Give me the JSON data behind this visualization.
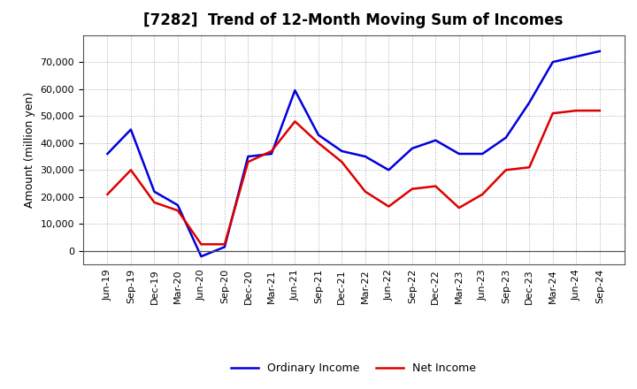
{
  "title": "[7282]  Trend of 12-Month Moving Sum of Incomes",
  "ylabel": "Amount (million yen)",
  "background_color": "#ffffff",
  "plot_background": "#ffffff",
  "grid_color": "#aaaaaa",
  "ordinary_income_color": "#0000dd",
  "net_income_color": "#dd0000",
  "ordinary_income_label": "Ordinary Income",
  "net_income_label": "Net Income",
  "x_labels": [
    "Jun-19",
    "Sep-19",
    "Dec-19",
    "Mar-20",
    "Jun-20",
    "Sep-20",
    "Dec-20",
    "Mar-21",
    "Jun-21",
    "Sep-21",
    "Dec-21",
    "Mar-22",
    "Jun-22",
    "Sep-22",
    "Dec-22",
    "Mar-23",
    "Jun-23",
    "Sep-23",
    "Dec-23",
    "Mar-24",
    "Jun-24",
    "Sep-24"
  ],
  "ordinary_income": [
    36000,
    45000,
    22000,
    17000,
    -2000,
    1500,
    35000,
    36000,
    59500,
    43000,
    37000,
    35000,
    30000,
    38000,
    41000,
    36000,
    36000,
    42000,
    55000,
    70000,
    72000,
    74000
  ],
  "net_income": [
    21000,
    30000,
    18000,
    15000,
    2500,
    2500,
    33000,
    37000,
    48000,
    40000,
    33000,
    22000,
    16500,
    23000,
    24000,
    16000,
    21000,
    30000,
    31000,
    51000,
    52000,
    52000
  ],
  "ylim": [
    -5000,
    80000
  ],
  "yticks": [
    0,
    10000,
    20000,
    30000,
    40000,
    50000,
    60000,
    70000
  ],
  "title_fontsize": 12,
  "axis_fontsize": 9,
  "tick_fontsize": 8,
  "legend_fontsize": 9,
  "line_width": 1.8
}
